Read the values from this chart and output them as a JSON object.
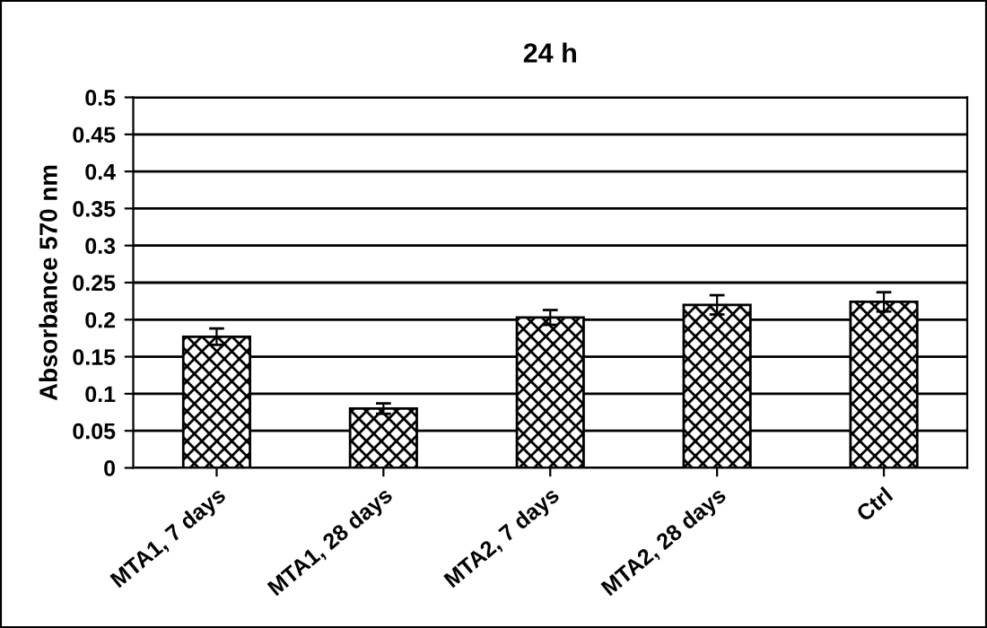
{
  "chart_data": {
    "type": "bar",
    "title": "24 h",
    "ylabel": "Absorbance 570 nm",
    "categories": [
      "MTA1, 7 days",
      "MTA1, 28 days",
      "MTA2, 7 days",
      "MTA2, 28 days",
      "Ctrl"
    ],
    "values": [
      0.177,
      0.08,
      0.203,
      0.22,
      0.224
    ],
    "errors": [
      0.011,
      0.007,
      0.01,
      0.013,
      0.013
    ],
    "color": "#000000",
    "ylim": [
      0,
      0.5
    ],
    "yticks": [
      0,
      0.05,
      0.1,
      0.15,
      0.2,
      0.25,
      0.3,
      0.35,
      0.4,
      0.45,
      0.5
    ],
    "grid": "y"
  }
}
